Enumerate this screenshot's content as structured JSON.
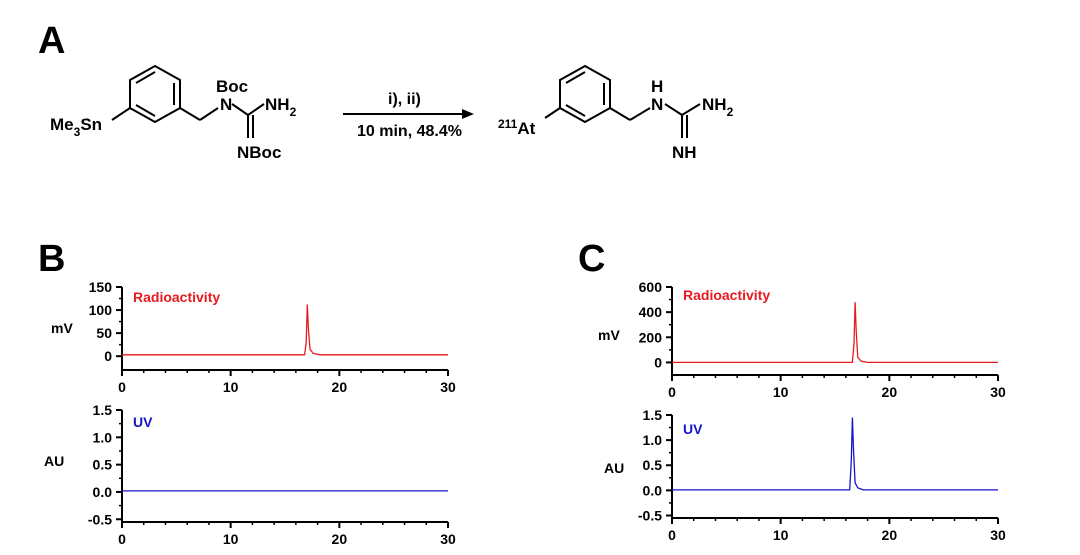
{
  "panels": {
    "a": "A",
    "b": "B",
    "c": "C"
  },
  "scheme": {
    "reactant_sn": "Me",
    "reactant_sn_sub": "3",
    "reactant_sn_tail": "Sn",
    "boc_top": "Boc",
    "n_left": "N",
    "nh2": "NH",
    "nh2_sub": "2",
    "nboc": "NBoc",
    "conditions_top": "i), ii)",
    "conditions_bottom": "10 min, 48.4%",
    "product_at_sup": "211",
    "product_at": "At",
    "product_h": "H",
    "product_n": "N",
    "product_nh2": "NH",
    "product_nh2_sub": "2",
    "product_nh": "NH"
  },
  "colors": {
    "radio": "#e8191f",
    "uv": "#1515c8",
    "axis": "#000000"
  },
  "chart_data": [
    {
      "id": "B-radio",
      "type": "line",
      "title": "Radioactivity",
      "ylabel": "mV",
      "xlim": [
        0,
        30
      ],
      "ylim": [
        -30,
        150
      ],
      "xticks": [
        0,
        10,
        20,
        30
      ],
      "yticks": [
        0,
        50,
        100,
        150
      ],
      "series": [
        {
          "name": "Radioactivity",
          "color": "#e8191f",
          "x": [
            0,
            16.8,
            16.95,
            17.05,
            17.15,
            17.3,
            17.6,
            18.2,
            30
          ],
          "y": [
            3,
            3,
            30,
            112,
            60,
            15,
            6,
            3,
            3
          ]
        }
      ]
    },
    {
      "id": "B-uv",
      "type": "line",
      "title": "UV",
      "ylabel": "AU",
      "xlim": [
        0,
        30
      ],
      "ylim": [
        -0.55,
        1.5
      ],
      "xticks": [
        0,
        10,
        20,
        30
      ],
      "yticks": [
        -0.5,
        0.0,
        0.5,
        1.0,
        1.5
      ],
      "series": [
        {
          "name": "UV",
          "color": "#1515c8",
          "x": [
            0,
            30
          ],
          "y": [
            0.02,
            0.02
          ]
        }
      ]
    },
    {
      "id": "C-radio",
      "type": "line",
      "title": "Radioactivity",
      "ylabel": "mV",
      "xlim": [
        0,
        30
      ],
      "ylim": [
        -100,
        600
      ],
      "xticks": [
        0,
        10,
        20,
        30
      ],
      "yticks": [
        0,
        200,
        400,
        600
      ],
      "series": [
        {
          "name": "Radioactivity",
          "color": "#e8191f",
          "x": [
            0,
            16.6,
            16.75,
            16.85,
            16.95,
            17.1,
            17.4,
            18.0,
            30
          ],
          "y": [
            0,
            0,
            150,
            480,
            250,
            40,
            10,
            0,
            0
          ]
        }
      ]
    },
    {
      "id": "C-uv",
      "type": "line",
      "title": "UV",
      "ylabel": "AU",
      "xlim": [
        0,
        30
      ],
      "ylim": [
        -0.55,
        1.5
      ],
      "xticks": [
        0,
        10,
        20,
        30
      ],
      "yticks": [
        -0.5,
        0.0,
        0.5,
        1.0,
        1.5
      ],
      "series": [
        {
          "name": "UV",
          "color": "#1515c8",
          "x": [
            0,
            16.35,
            16.5,
            16.6,
            16.7,
            16.85,
            17.1,
            17.6,
            30
          ],
          "y": [
            0.01,
            0.01,
            0.6,
            1.45,
            0.8,
            0.15,
            0.05,
            0.01,
            0.01
          ]
        }
      ]
    }
  ]
}
